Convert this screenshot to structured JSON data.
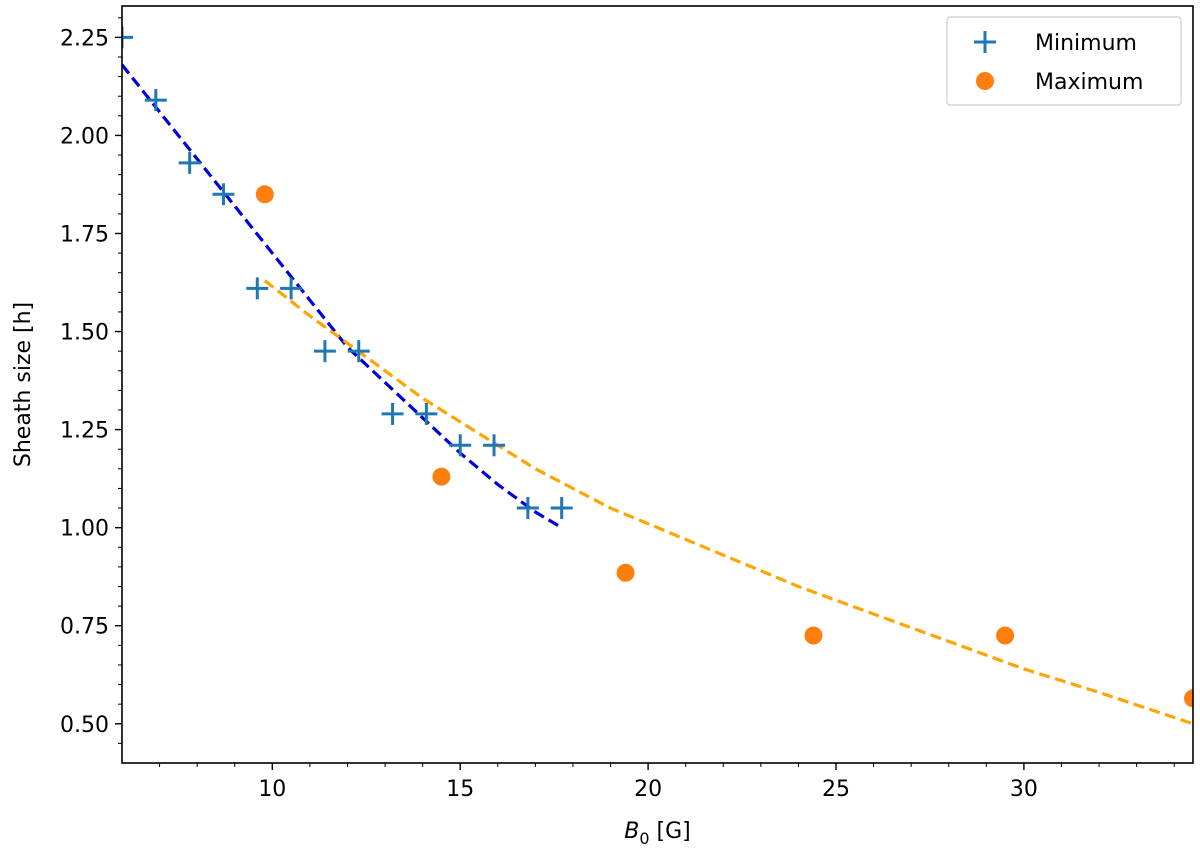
{
  "chart_data": {
    "type": "scatter",
    "title": "",
    "xlabel": {
      "symbol": "B",
      "subscript": "0",
      "unit": " [G]"
    },
    "ylabel": "Sheath size  [h]",
    "xlim": [
      6.0,
      34.5
    ],
    "ylim": [
      0.4,
      2.33
    ],
    "xticks": [
      10,
      15,
      20,
      25,
      30
    ],
    "yticks": [
      0.5,
      0.75,
      1.0,
      1.25,
      1.5,
      1.75,
      2.0,
      2.25
    ],
    "ytick_labels": [
      "0.50",
      "0.75",
      "1.00",
      "1.25",
      "1.50",
      "1.75",
      "2.00",
      "2.25"
    ],
    "xticks_minor": [
      7,
      8,
      9,
      11,
      12,
      13,
      14,
      16,
      17,
      18,
      19,
      21,
      22,
      23,
      24,
      26,
      27,
      28,
      29,
      31,
      32,
      33,
      34
    ],
    "yticks_minor": [
      0.45,
      0.55,
      0.6,
      0.65,
      0.7,
      0.8,
      0.85,
      0.9,
      0.95,
      1.05,
      1.1,
      1.15,
      1.2,
      1.3,
      1.35,
      1.4,
      1.45,
      1.55,
      1.6,
      1.65,
      1.7,
      1.8,
      1.85,
      1.9,
      1.95,
      2.05,
      2.1,
      2.15,
      2.2,
      2.3
    ],
    "grid": false,
    "legend_position": "top-right",
    "series": [
      {
        "name": "Minimum",
        "marker": "plus",
        "color": "#1f77b4",
        "x": [
          6.0,
          6.9,
          7.8,
          8.7,
          9.6,
          10.5,
          11.4,
          12.3,
          13.2,
          14.1,
          15.0,
          15.9,
          16.8,
          17.7
        ],
        "y": [
          2.25,
          2.09,
          1.93,
          1.85,
          1.61,
          1.61,
          1.45,
          1.45,
          1.29,
          1.29,
          1.21,
          1.21,
          1.05,
          1.05
        ]
      },
      {
        "name": "Maximum",
        "marker": "circle",
        "color": "#ff7f0e",
        "x": [
          9.8,
          14.5,
          19.4,
          24.4,
          29.5,
          34.5
        ],
        "y": [
          1.85,
          1.13,
          0.885,
          0.725,
          0.725,
          0.565
        ]
      }
    ],
    "fit_lines": [
      {
        "color": "#0000dd",
        "dash": "dashed",
        "x": [
          6.0,
          7.0,
          8.0,
          9.0,
          10.0,
          11.0,
          12.0,
          13.0,
          14.0,
          15.0,
          16.0,
          17.0,
          17.7
        ],
        "y": [
          2.18,
          2.06,
          1.94,
          1.82,
          1.7,
          1.58,
          1.46,
          1.37,
          1.28,
          1.19,
          1.11,
          1.04,
          1.0
        ]
      },
      {
        "color": "#ffa500",
        "dash": "dashed",
        "x": [
          9.8,
          11.0,
          12.0,
          13.0,
          14.0,
          15.0,
          16.0,
          17.0,
          18.0,
          19.0,
          20.0,
          22.0,
          24.0,
          26.0,
          28.0,
          30.0,
          32.0,
          34.5
        ],
        "y": [
          1.63,
          1.54,
          1.47,
          1.4,
          1.33,
          1.27,
          1.21,
          1.15,
          1.1,
          1.05,
          1.01,
          0.93,
          0.85,
          0.78,
          0.71,
          0.64,
          0.58,
          0.5
        ]
      }
    ]
  }
}
